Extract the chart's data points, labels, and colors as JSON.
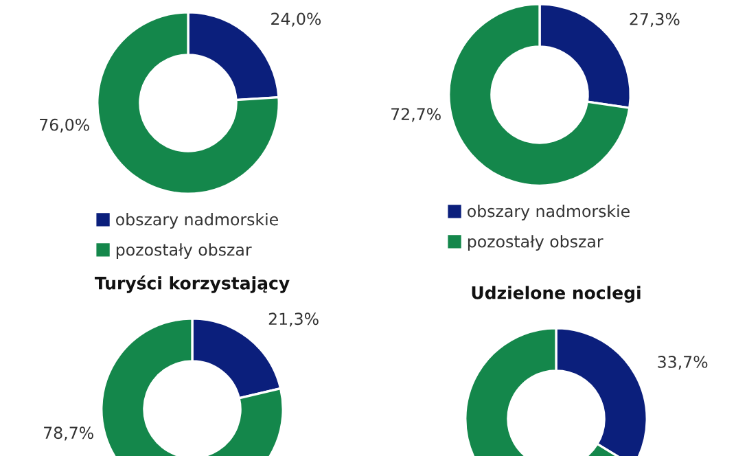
{
  "chart_data": [
    {
      "type": "donut",
      "categories": [
        "obszary nadmorskie",
        "pozostały obszar"
      ],
      "values": [
        24.0,
        76.0
      ],
      "colors": [
        "#0b1f7c",
        "#14874b"
      ],
      "value_labels": [
        "24,0%",
        "76,0%"
      ],
      "legend": "bottom"
    },
    {
      "type": "donut",
      "categories": [
        "obszary nadmorskie",
        "pozostały obszar"
      ],
      "values": [
        27.3,
        72.7
      ],
      "colors": [
        "#0b1f7c",
        "#14874b"
      ],
      "value_labels": [
        "27,3%",
        "72,7%"
      ],
      "legend": "bottom"
    },
    {
      "type": "donut",
      "title": "Turyści korzystający",
      "categories": [
        null,
        null
      ],
      "values": [
        21.3,
        78.7
      ],
      "colors": [
        "#0b1f7c",
        "#14874b"
      ],
      "value_labels": [
        "21,3%",
        "78,7%"
      ]
    },
    {
      "type": "donut",
      "title": "Udzielone noclegi",
      "categories": [
        null,
        null
      ],
      "values": [
        33.7,
        66.3
      ],
      "colors": [
        "#0b1f7c",
        "#14874b"
      ],
      "value_labels": [
        "33,7%",
        null
      ]
    }
  ]
}
